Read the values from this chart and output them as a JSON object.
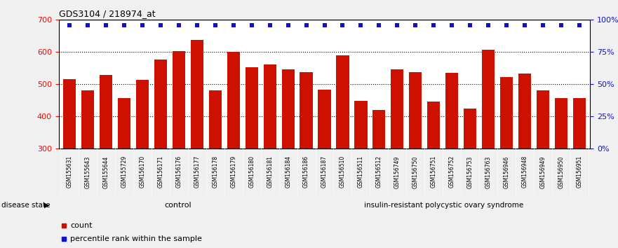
{
  "title": "GDS3104 / 218974_at",
  "categories": [
    "GSM155631",
    "GSM155643",
    "GSM155644",
    "GSM155729",
    "GSM156170",
    "GSM156171",
    "GSM156176",
    "GSM156177",
    "GSM156178",
    "GSM156179",
    "GSM156180",
    "GSM156181",
    "GSM156184",
    "GSM156186",
    "GSM156187",
    "GSM156510",
    "GSM156511",
    "GSM156512",
    "GSM156749",
    "GSM156750",
    "GSM156751",
    "GSM156752",
    "GSM156753",
    "GSM156763",
    "GSM156946",
    "GSM156948",
    "GSM156949",
    "GSM156950",
    "GSM156951"
  ],
  "bar_values": [
    515,
    482,
    530,
    457,
    513,
    577,
    603,
    637,
    482,
    600,
    553,
    562,
    547,
    537,
    483,
    590,
    448,
    420,
    547,
    537,
    447,
    535,
    425,
    607,
    522,
    534,
    482,
    458,
    458
  ],
  "bar_color": "#cc1100",
  "percentile_color": "#1111cc",
  "control_count": 13,
  "disease_label": "insulin-resistant polycystic ovary syndrome",
  "control_label": "control",
  "disease_state_label": "disease state",
  "ylim_left": [
    300,
    700
  ],
  "ylim_right": [
    0,
    100
  ],
  "yticks_left": [
    300,
    400,
    500,
    600,
    700
  ],
  "yticks_right": [
    0,
    25,
    50,
    75,
    100
  ],
  "legend_count_label": "count",
  "legend_percentile_label": "percentile rank within the sample",
  "fig_bg_color": "#f0f0f0",
  "plot_bg": "#ffffff",
  "control_bg": "#ccf0cc",
  "disease_bg": "#55dd55",
  "tick_area_bg": "#d0d0d0",
  "grid_color": "#555555",
  "top_line_color": "#000000",
  "border_color": "#000000"
}
